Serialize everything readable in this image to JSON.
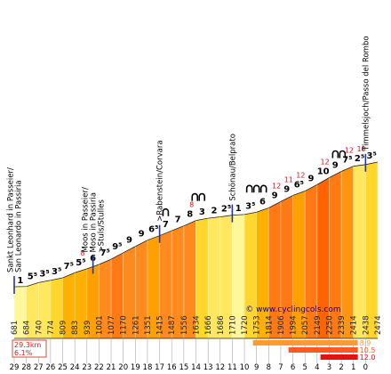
{
  "chart_data": {
    "type": "area",
    "title": "",
    "xlabel": "",
    "ylabel": "",
    "x_direction": "descending",
    "km_ticks": [
      "29",
      "28",
      "27",
      "26",
      "25",
      "24",
      "23",
      "22",
      "21",
      "20",
      "19",
      "18",
      "17",
      "16",
      "15",
      "14",
      "13",
      "12",
      "11",
      "10",
      "9",
      "8",
      "7",
      "6",
      "5",
      "4",
      "3",
      "2",
      "1",
      "0"
    ],
    "altitudes": [
      681,
      684,
      740,
      774,
      809,
      883,
      939,
      1001,
      1077,
      1170,
      1261,
      1351,
      1415,
      1487,
      1556,
      1634,
      1666,
      1686,
      1710,
      1720,
      1753,
      1814,
      1906,
      1994,
      2057,
      2149,
      2250,
      2339,
      2414,
      2438,
      2474
    ],
    "gradients": [
      "1",
      "5⁵",
      "3⁵",
      "3⁵",
      "7⁵",
      "5⁵",
      "6",
      "7⁵",
      "9⁵",
      "9",
      "9",
      "6⁵",
      "7",
      "7",
      "8",
      "3",
      "2",
      "2⁵",
      "1",
      "3⁵",
      "6",
      "9",
      "9",
      "6⁵",
      "9",
      "10",
      "9",
      "7⁵",
      "2⁵",
      "3⁵"
    ],
    "gradient_colors": [
      "#fff79a",
      "#ffe860",
      "#ffe860",
      "#ffd62e",
      "#ffb000",
      "#ffb000",
      "#ffa000",
      "#ff8a1e",
      "#ff7a14",
      "#ff8a1e",
      "#ff8a1e",
      "#ffa000",
      "#ff8a1e",
      "#ff8a1e",
      "#ff8a1e",
      "#ffd62e",
      "#ffe860",
      "#ffe860",
      "#fff79a",
      "#ffd62e",
      "#ffb000",
      "#ff7a14",
      "#ff7a14",
      "#ffa000",
      "#ff7a14",
      "#ff6400",
      "#ff7a14",
      "#ff9410",
      "#ffe860",
      "#ffd62e"
    ],
    "segment_max_labels": [
      {
        "segment": 5,
        "value": "8"
      },
      {
        "segment": 14,
        "value": "8"
      },
      {
        "segment": 21,
        "value": "12"
      },
      {
        "segment": 22,
        "value": "11"
      },
      {
        "segment": 23,
        "value": "12"
      },
      {
        "segment": 25,
        "value": "12"
      },
      {
        "segment": 27,
        "value": "12"
      },
      {
        "segment": 28,
        "value": "10"
      }
    ],
    "places": [
      {
        "km": 29,
        "lines": [
          "Sankt Leonhard in Passeier/",
          "San Leonardo in Passiria"
        ]
      },
      {
        "km": 22.5,
        "lines": [
          "Moos in Passeier/",
          "Moso in Passiria",
          ">Stuls/Stulles"
        ]
      },
      {
        "km": 17,
        "lines": [
          ">Rabenstein/Corvara"
        ]
      },
      {
        "km": 11,
        "lines": [
          "Schönau/Belprato"
        ]
      },
      {
        "km": 0,
        "lines": [
          "Timmelsjoch/Passo del Rombo"
        ]
      }
    ],
    "hairpins": [
      {
        "km": 16.5,
        "count": 1
      },
      {
        "km": 13.8,
        "count": 2
      },
      {
        "km": 9,
        "count": 3
      },
      {
        "km": 2.2,
        "count": 2
      }
    ],
    "summary": {
      "distance": "29.3km",
      "gradient": "6.1%"
    },
    "watermark": "© www.cyclingcols.com",
    "max_gradient_bars": [
      {
        "value": "8.9",
        "color": "#ff9a33"
      },
      {
        "value": "10.5",
        "color": "#ff5a1e"
      },
      {
        "value": "12.0",
        "color": "#e81010"
      }
    ]
  }
}
